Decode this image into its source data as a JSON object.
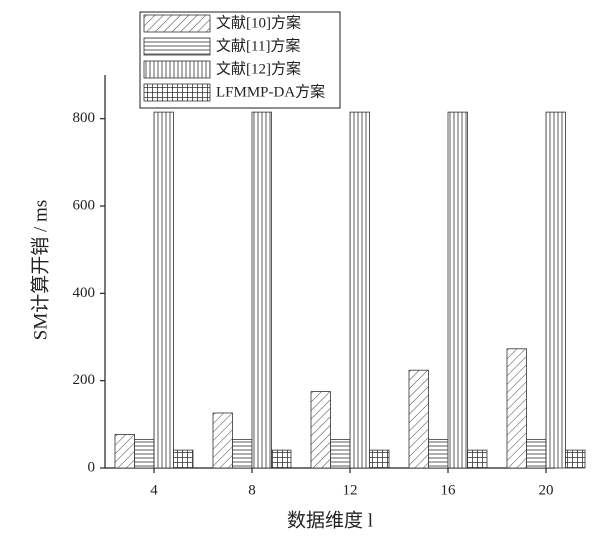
{
  "chart_data": {
    "type": "bar",
    "x_label": "数据维度 l",
    "y_label": "SM计算开销 / ms",
    "categories": [
      "4",
      "8",
      "12",
      "16",
      "20"
    ],
    "series": [
      {
        "name": "文献[10]方案",
        "color": "#333333",
        "pattern": "diagonal",
        "values": [
          77,
          126,
          175,
          224,
          273
        ]
      },
      {
        "name": "文献[11]方案",
        "color": "#333333",
        "pattern": "horizontal",
        "values": [
          65,
          65,
          65,
          65,
          65
        ]
      },
      {
        "name": "文献[12]方案",
        "color": "#333333",
        "pattern": "vertical",
        "values": [
          815,
          815,
          815,
          815,
          815
        ]
      },
      {
        "name": "LFMMP-DA方案",
        "color": "#333333",
        "pattern": "grid",
        "values": [
          41,
          41,
          41,
          41,
          41
        ]
      }
    ],
    "ylim": [
      0,
      900
    ],
    "yticks": [
      0,
      200,
      400,
      600,
      800
    ],
    "grid": false,
    "legend": "top-left"
  }
}
